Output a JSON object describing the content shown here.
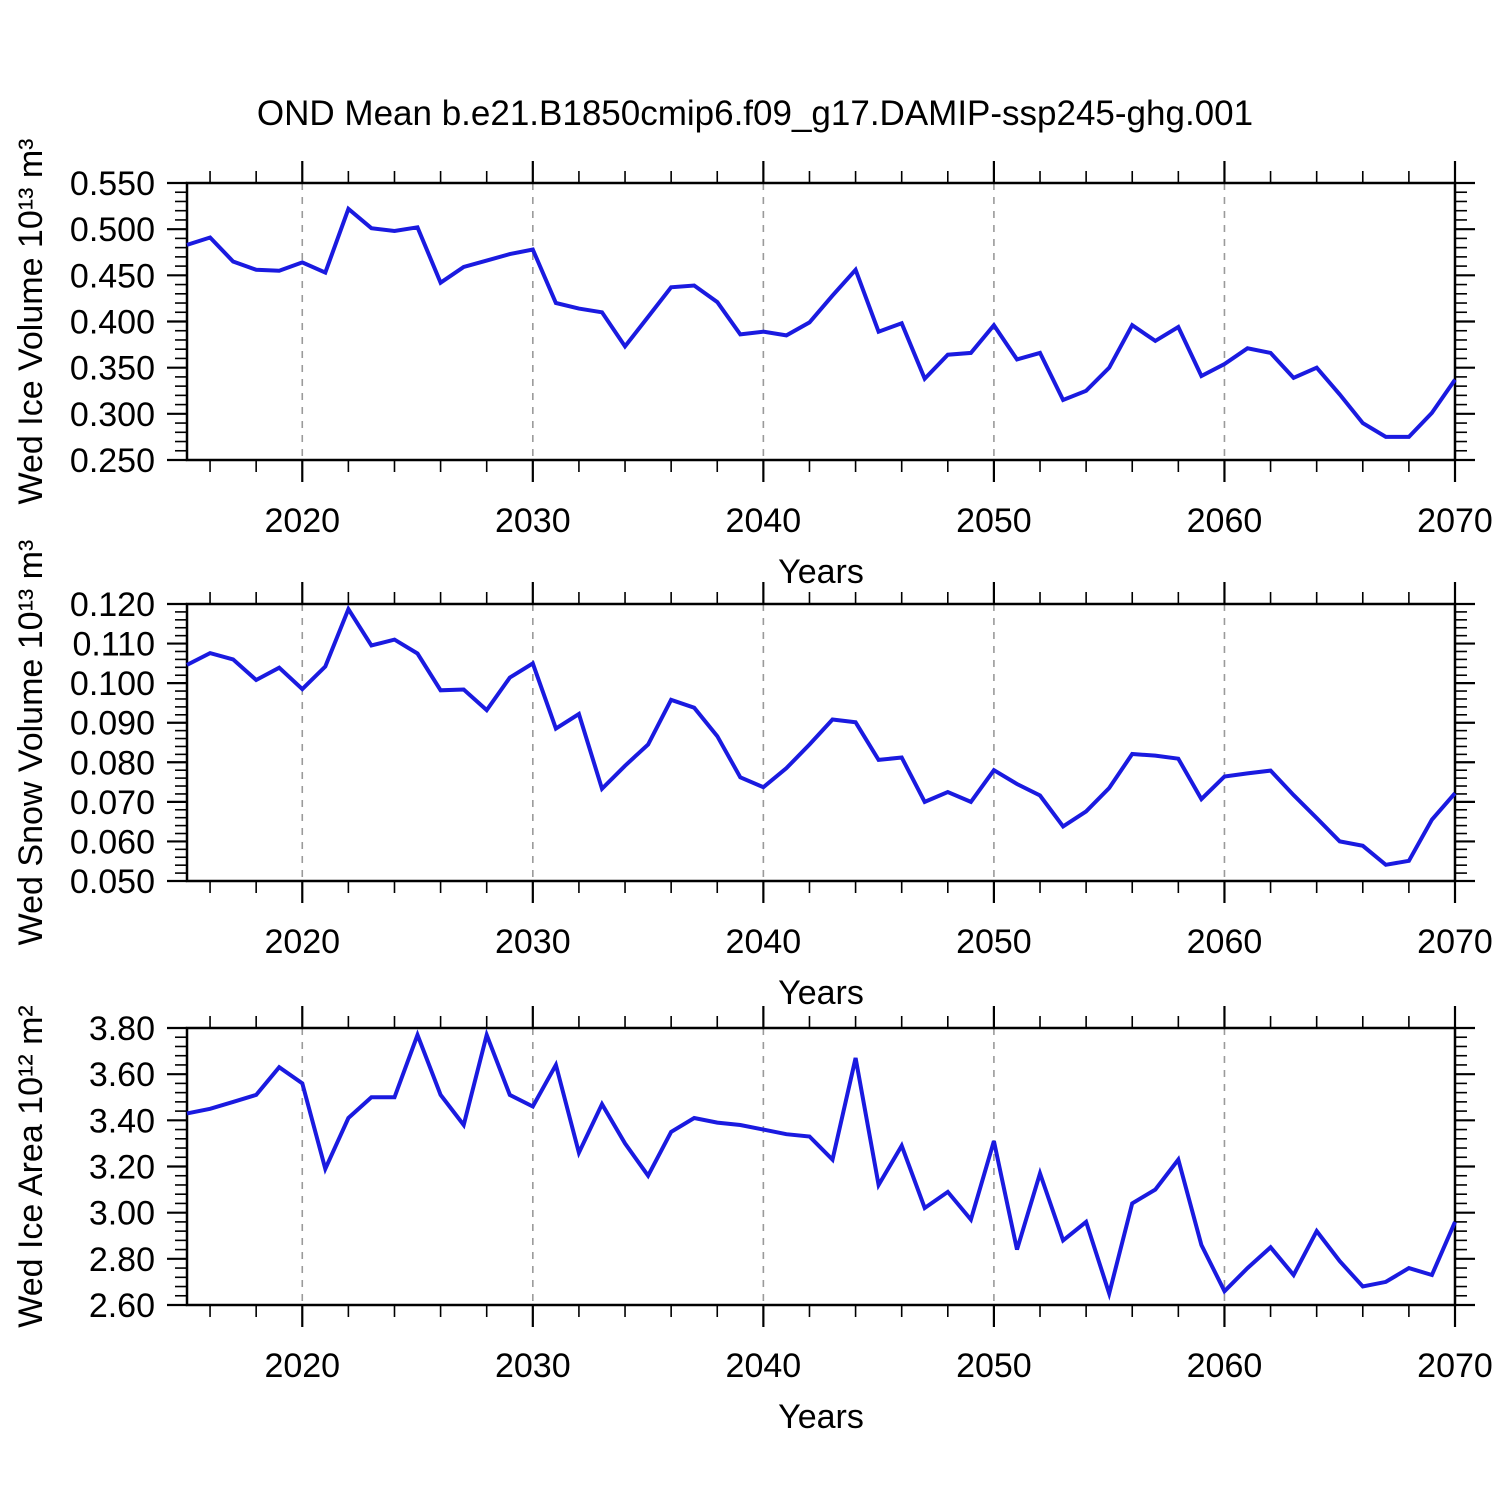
{
  "title": "OND Mean b.e21.B1850cmip6.f09_g17.DAMIP-ssp245-ghg.001",
  "figure": {
    "background": "#ffffff",
    "line_color": "#1a1ae0",
    "grid_color": "#9a9a9a",
    "axis_color": "#000000"
  },
  "chart_data": [
    {
      "type": "line",
      "title": "OND Mean b.e21.B1850cmip6.f09_g17.DAMIP-ssp245-ghg.001",
      "xlabel": "Years",
      "ylabel": "Wed Ice Volume 10¹³ m³",
      "xlim": [
        2015,
        2070
      ],
      "ylim": [
        0.25,
        0.55
      ],
      "xticks": [
        2020,
        2030,
        2040,
        2050,
        2060,
        2070
      ],
      "x_minor_step": 2,
      "ytick_step": 0.05,
      "y_minor_step": 0.01,
      "ytick_decimals": 3,
      "grid_x": [
        2020,
        2030,
        2040,
        2050,
        2060
      ],
      "grid": "dashed-vertical",
      "legend": "none",
      "x_start": 2015,
      "x_step": 1,
      "series": [
        {
          "name": "Wed Ice Volume",
          "values": [
            0.483,
            0.491,
            0.465,
            0.456,
            0.455,
            0.464,
            0.453,
            0.522,
            0.501,
            0.498,
            0.502,
            0.442,
            0.459,
            0.466,
            0.473,
            0.478,
            0.42,
            0.414,
            0.41,
            0.373,
            0.405,
            0.437,
            0.439,
            0.421,
            0.386,
            0.389,
            0.385,
            0.399,
            0.428,
            0.456,
            0.389,
            0.398,
            0.338,
            0.364,
            0.366,
            0.396,
            0.359,
            0.366,
            0.315,
            0.325,
            0.35,
            0.396,
            0.379,
            0.394,
            0.341,
            0.354,
            0.371,
            0.366,
            0.339,
            0.35,
            0.321,
            0.29,
            0.275,
            0.275,
            0.301,
            0.337
          ]
        }
      ]
    },
    {
      "type": "line",
      "title": "",
      "xlabel": "Years",
      "ylabel": "Wed Snow Volume 10¹³ m³",
      "xlim": [
        2015,
        2070
      ],
      "ylim": [
        0.05,
        0.12
      ],
      "xticks": [
        2020,
        2030,
        2040,
        2050,
        2060,
        2070
      ],
      "x_minor_step": 2,
      "ytick_step": 0.01,
      "y_minor_step": 0.002,
      "ytick_decimals": 3,
      "grid_x": [
        2020,
        2030,
        2040,
        2050,
        2060
      ],
      "grid": "dashed-vertical",
      "legend": "none",
      "x_start": 2015,
      "x_step": 1,
      "series": [
        {
          "name": "Wed Snow Volume",
          "values": [
            0.1046,
            0.1076,
            0.106,
            0.1008,
            0.1039,
            0.0985,
            0.1042,
            0.1187,
            0.1095,
            0.111,
            0.1075,
            0.0982,
            0.0984,
            0.0932,
            0.1014,
            0.105,
            0.0885,
            0.0922,
            0.0733,
            0.0791,
            0.0845,
            0.0958,
            0.0938,
            0.0866,
            0.0762,
            0.0737,
            0.0785,
            0.0845,
            0.0908,
            0.0901,
            0.0806,
            0.0812,
            0.07,
            0.0725,
            0.07,
            0.078,
            0.0745,
            0.0716,
            0.0638,
            0.0676,
            0.0735,
            0.0821,
            0.0817,
            0.0809,
            0.0707,
            0.0764,
            0.0772,
            0.0779,
            0.0717,
            0.0659,
            0.06,
            0.0589,
            0.0541,
            0.0551,
            0.0655,
            0.0722
          ]
        }
      ]
    },
    {
      "type": "line",
      "title": "",
      "xlabel": "Years",
      "ylabel": "Wed Ice Area 10¹² m²",
      "xlim": [
        2015,
        2070
      ],
      "ylim": [
        2.6,
        3.8
      ],
      "xticks": [
        2020,
        2030,
        2040,
        2050,
        2060,
        2070
      ],
      "x_minor_step": 2,
      "ytick_step": 0.2,
      "y_minor_step": 0.04,
      "ytick_decimals": 2,
      "grid_x": [
        2020,
        2030,
        2040,
        2050,
        2060
      ],
      "grid": "dashed-vertical",
      "legend": "none",
      "x_start": 2015,
      "x_step": 1,
      "series": [
        {
          "name": "Wed Ice Area",
          "values": [
            3.43,
            3.45,
            3.48,
            3.51,
            3.63,
            3.56,
            3.19,
            3.41,
            3.5,
            3.5,
            3.77,
            3.51,
            3.38,
            3.77,
            3.51,
            3.46,
            3.64,
            3.26,
            3.47,
            3.3,
            3.16,
            3.35,
            3.41,
            3.39,
            3.38,
            3.36,
            3.34,
            3.33,
            3.23,
            3.67,
            3.12,
            3.29,
            3.02,
            3.09,
            2.97,
            3.31,
            2.84,
            3.17,
            2.88,
            2.96,
            2.65,
            3.04,
            3.1,
            3.23,
            2.86,
            2.66,
            2.76,
            2.85,
            2.73,
            2.92,
            2.79,
            2.68,
            2.7,
            2.76,
            2.73,
            2.96
          ]
        }
      ]
    }
  ]
}
